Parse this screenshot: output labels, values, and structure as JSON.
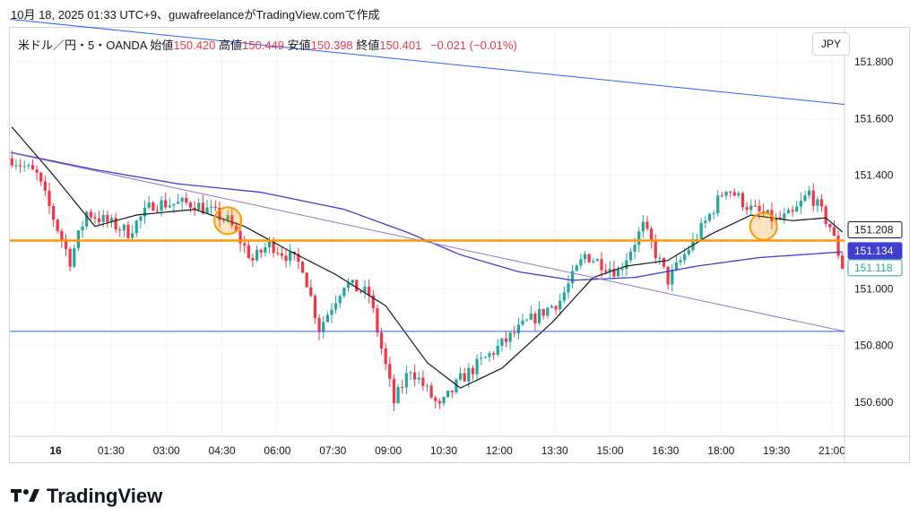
{
  "caption": "10月 18, 2025 01:33 UTC+9、guwafreelanceがTradingView.comで作成",
  "legend": {
    "symbol": "米ドル／円・5・OANDA",
    "open_label": "始値",
    "open": "150.420",
    "high_label": "高値",
    "high": "150.449",
    "low_label": "安値",
    "low": "150.398",
    "close_label": "終値",
    "close": "150.401",
    "change": "−0.021 (−0.01%)"
  },
  "currency": "JPY",
  "brand": {
    "name": "TradingView",
    "logo_icon": "tradingview-logo-icon"
  },
  "chart_data": {
    "type": "candlestick",
    "x_ticks": [
      "16",
      "01:30",
      "03:00",
      "04:30",
      "06:00",
      "07:30",
      "09:00",
      "10:30",
      "12:00",
      "13:30",
      "15:00",
      "16:30",
      "18:00",
      "19:30",
      "21:00"
    ],
    "ylim": [
      150.48,
      151.92
    ],
    "y_ticks": [
      "151.800",
      "151.600",
      "151.400",
      "151.200",
      "151.000",
      "150.800",
      "150.600"
    ],
    "grid": true,
    "price_labels": [
      {
        "text": "151.208",
        "value": 151.208,
        "style": "current"
      },
      {
        "text": "151.134",
        "value": 151.134,
        "style": "blue"
      },
      {
        "text": "151.118",
        "value": 151.118,
        "style": "teal"
      }
    ],
    "up_color": "#26a69a",
    "down_color": "#f23645",
    "key_points": [
      {
        "t": 0,
        "v": 151.46
      },
      {
        "t": 6,
        "v": 151.4
      },
      {
        "t": 14,
        "v": 151.1
      },
      {
        "t": 18,
        "v": 151.27
      },
      {
        "t": 28,
        "v": 151.2
      },
      {
        "t": 34,
        "v": 151.3
      },
      {
        "t": 44,
        "v": 151.3
      },
      {
        "t": 52,
        "v": 151.24
      },
      {
        "t": 58,
        "v": 151.1
      },
      {
        "t": 62,
        "v": 151.16
      },
      {
        "t": 70,
        "v": 151.08
      },
      {
        "t": 74,
        "v": 150.86
      },
      {
        "t": 80,
        "v": 151.02
      },
      {
        "t": 86,
        "v": 150.98
      },
      {
        "t": 92,
        "v": 150.6
      },
      {
        "t": 96,
        "v": 150.72
      },
      {
        "t": 103,
        "v": 150.58
      },
      {
        "t": 108,
        "v": 150.68
      },
      {
        "t": 116,
        "v": 150.78
      },
      {
        "t": 124,
        "v": 150.88
      },
      {
        "t": 132,
        "v": 150.96
      },
      {
        "t": 138,
        "v": 151.12
      },
      {
        "t": 146,
        "v": 151.06
      },
      {
        "t": 152,
        "v": 151.22
      },
      {
        "t": 158,
        "v": 151.03
      },
      {
        "t": 166,
        "v": 151.21
      },
      {
        "t": 172,
        "v": 151.36
      },
      {
        "t": 178,
        "v": 151.28
      },
      {
        "t": 184,
        "v": 151.24
      },
      {
        "t": 188,
        "v": 151.26
      },
      {
        "t": 192,
        "v": 151.34
      },
      {
        "t": 197,
        "v": 151.22
      },
      {
        "t": 200,
        "v": 151.08
      }
    ],
    "n_bars": 201,
    "ma_fast": [
      {
        "t": 0,
        "v": 151.57
      },
      {
        "t": 10,
        "v": 151.4
      },
      {
        "t": 20,
        "v": 151.22
      },
      {
        "t": 30,
        "v": 151.26
      },
      {
        "t": 44,
        "v": 151.28
      },
      {
        "t": 56,
        "v": 151.22
      },
      {
        "t": 66,
        "v": 151.14
      },
      {
        "t": 78,
        "v": 151.05
      },
      {
        "t": 90,
        "v": 150.94
      },
      {
        "t": 100,
        "v": 150.74
      },
      {
        "t": 108,
        "v": 150.65
      },
      {
        "t": 118,
        "v": 150.72
      },
      {
        "t": 130,
        "v": 150.88
      },
      {
        "t": 140,
        "v": 151.04
      },
      {
        "t": 148,
        "v": 151.08
      },
      {
        "t": 158,
        "v": 151.1
      },
      {
        "t": 168,
        "v": 151.19
      },
      {
        "t": 178,
        "v": 151.26
      },
      {
        "t": 188,
        "v": 151.24
      },
      {
        "t": 196,
        "v": 151.25
      },
      {
        "t": 200,
        "v": 151.2
      }
    ],
    "ma_slow": [
      {
        "t": 0,
        "v": 151.48
      },
      {
        "t": 20,
        "v": 151.42
      },
      {
        "t": 40,
        "v": 151.37
      },
      {
        "t": 60,
        "v": 151.34
      },
      {
        "t": 80,
        "v": 151.28
      },
      {
        "t": 95,
        "v": 151.2
      },
      {
        "t": 108,
        "v": 151.12
      },
      {
        "t": 122,
        "v": 151.06
      },
      {
        "t": 135,
        "v": 151.03
      },
      {
        "t": 150,
        "v": 151.04
      },
      {
        "t": 165,
        "v": 151.08
      },
      {
        "t": 180,
        "v": 151.11
      },
      {
        "t": 200,
        "v": 151.13
      }
    ],
    "trendlines": [
      {
        "name": "upper-trendline",
        "from": {
          "t": 0,
          "v": 151.95
        },
        "to": {
          "t": 200,
          "v": 151.65
        },
        "color": "#2962ff"
      },
      {
        "name": "lower-trendline",
        "from": {
          "t": 0,
          "v": 151.48
        },
        "to": {
          "t": 200,
          "v": 150.85
        },
        "color": "#9575cd"
      }
    ],
    "horizontal_lines": [
      {
        "name": "support-resistance-line",
        "value": 151.17,
        "color": "#ff9800"
      },
      {
        "name": "bottom-horizontal-line",
        "value": 150.85,
        "color": "#2962ff"
      }
    ],
    "circles": [
      {
        "t": 52,
        "v": 151.24
      },
      {
        "t": 181,
        "v": 151.22
      }
    ]
  }
}
